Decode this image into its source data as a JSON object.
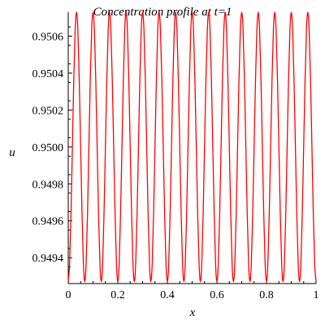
{
  "chart_data": {
    "type": "line",
    "title": "Concentration profile at t=1",
    "xlabel": "x",
    "ylabel": "u",
    "xlim": [
      0,
      1
    ],
    "ylim": [
      0.94926,
      0.95073
    ],
    "x_ticks": [
      "0",
      "0.2",
      "0.4",
      "0.6",
      "0.8",
      "1"
    ],
    "x_tick_values": [
      0,
      0.2,
      0.4,
      0.6,
      0.8,
      1
    ],
    "y_ticks": [
      "0.9494",
      "0.9496",
      "0.9498",
      "0.9500",
      "0.9502",
      "0.9504",
      "0.9506"
    ],
    "y_tick_values": [
      0.9494,
      0.9496,
      0.9498,
      0.95,
      0.9502,
      0.9504,
      0.9506
    ],
    "grid": false,
    "series": [
      {
        "color": "#ff0000",
        "x": [
          0,
          0.0056,
          0.0111,
          0.0167,
          0.0222,
          0.0278,
          0.0333,
          0.0389,
          0.0444,
          0.05,
          0.0556,
          0.0611,
          0.0667,
          0.0722,
          0.0778,
          0.0833,
          0.0889,
          0.0944,
          0.1,
          0.1056,
          0.1111,
          0.1167,
          0.1222,
          0.1278,
          0.1333,
          0.1389,
          0.1444,
          0.15,
          0.1556,
          0.1611,
          0.1667,
          0.1722,
          0.1778,
          0.1833,
          0.1889,
          0.1944,
          0.2,
          0.2056,
          0.2111,
          0.2167,
          0.2222,
          0.2278,
          0.2333,
          0.2389,
          0.2444,
          0.25,
          0.2556,
          0.2611,
          0.2667,
          0.2722,
          0.2778,
          0.2833,
          0.2889,
          0.2944,
          0.3,
          0.3056,
          0.3111,
          0.3167,
          0.3222,
          0.3278,
          0.3333,
          0.3389,
          0.3444,
          0.35,
          0.3556,
          0.3611,
          0.3667,
          0.3722,
          0.3778,
          0.3833,
          0.3889,
          0.3944,
          0.4,
          0.4056,
          0.4111,
          0.4167,
          0.4222,
          0.4278,
          0.4333,
          0.4389,
          0.4444,
          0.45,
          0.4556,
          0.4611,
          0.4667,
          0.4722,
          0.4778,
          0.4833,
          0.4889,
          0.4944,
          0.5,
          0.5056,
          0.5111,
          0.5167,
          0.5222,
          0.5278,
          0.5333,
          0.5389,
          0.5444,
          0.55,
          0.5556,
          0.5611,
          0.5667,
          0.5722,
          0.5778,
          0.5833,
          0.5889,
          0.5944,
          0.6,
          0.6056,
          0.6111,
          0.6167,
          0.6222,
          0.6278,
          0.6333,
          0.6389,
          0.6444,
          0.65,
          0.6556,
          0.6611,
          0.6667,
          0.6722,
          0.6778,
          0.6833,
          0.6889,
          0.6944,
          0.7,
          0.7056,
          0.7111,
          0.7167,
          0.7222,
          0.7278,
          0.7333,
          0.7389,
          0.7444,
          0.75,
          0.7556,
          0.7611,
          0.7667,
          0.7722,
          0.7778,
          0.7833,
          0.7889,
          0.7944,
          0.8,
          0.8056,
          0.8111,
          0.8167,
          0.8222,
          0.8278,
          0.8333,
          0.8389,
          0.8444,
          0.85,
          0.8556,
          0.8611,
          0.8667,
          0.8722,
          0.8778,
          0.8833,
          0.8889,
          0.8944,
          0.9,
          0.9056,
          0.9111,
          0.9167,
          0.9222,
          0.9278,
          0.9333,
          0.9389,
          0.9444,
          0.95,
          0.9556,
          0.9611,
          0.9667,
          0.9722,
          0.9778,
          0.9833,
          0.9889,
          0.9944,
          1
        ],
        "y": [
          0.94927,
          0.94937,
          0.94964,
          0.95,
          0.95036,
          0.95063,
          0.95073,
          0.95063,
          0.95036,
          0.95,
          0.94964,
          0.94937,
          0.94927,
          0.94937,
          0.94964,
          0.95,
          0.95036,
          0.95063,
          0.95073,
          0.95063,
          0.95036,
          0.95,
          0.94964,
          0.94937,
          0.94927,
          0.94937,
          0.94964,
          0.95,
          0.95036,
          0.95063,
          0.95073,
          0.95063,
          0.95036,
          0.95,
          0.94964,
          0.94937,
          0.94927,
          0.94937,
          0.94964,
          0.95,
          0.95036,
          0.95063,
          0.95073,
          0.95063,
          0.95036,
          0.95,
          0.94964,
          0.94937,
          0.94927,
          0.94937,
          0.94964,
          0.95,
          0.95036,
          0.95063,
          0.95073,
          0.95063,
          0.95036,
          0.95,
          0.94964,
          0.94937,
          0.94927,
          0.94937,
          0.94964,
          0.95,
          0.95036,
          0.95063,
          0.95073,
          0.95063,
          0.95036,
          0.95,
          0.94964,
          0.94937,
          0.94927,
          0.94937,
          0.94964,
          0.95,
          0.95036,
          0.95063,
          0.95073,
          0.95063,
          0.95036,
          0.95,
          0.94964,
          0.94937,
          0.94927,
          0.94937,
          0.94964,
          0.95,
          0.95036,
          0.95063,
          0.95073,
          0.95063,
          0.95036,
          0.95,
          0.94964,
          0.94937,
          0.94927,
          0.94937,
          0.94964,
          0.95,
          0.95036,
          0.95063,
          0.95073,
          0.95063,
          0.95036,
          0.95,
          0.94964,
          0.94937,
          0.94927,
          0.94937,
          0.94964,
          0.95,
          0.95036,
          0.95063,
          0.95073,
          0.95063,
          0.95036,
          0.95,
          0.94964,
          0.94937,
          0.94927,
          0.94937,
          0.94964,
          0.95,
          0.95036,
          0.95063,
          0.95073,
          0.95063,
          0.95036,
          0.95,
          0.94964,
          0.94937,
          0.94927,
          0.94937,
          0.94964,
          0.95,
          0.95036,
          0.95063,
          0.95073,
          0.95063,
          0.95036,
          0.95,
          0.94964,
          0.94937,
          0.94927,
          0.94937,
          0.94964,
          0.95,
          0.95036,
          0.95063,
          0.95073,
          0.95063,
          0.95036,
          0.95,
          0.94964,
          0.94937,
          0.94927,
          0.94937,
          0.94964,
          0.95,
          0.95036,
          0.95063,
          0.95073,
          0.95063,
          0.95036,
          0.95,
          0.94964,
          0.94937,
          0.94927,
          0.94937,
          0.94964,
          0.95,
          0.95036,
          0.95063,
          0.95073,
          0.95063,
          0.95036,
          0.95,
          0.94964,
          0.94937,
          0.94927
        ]
      }
    ],
    "colors": {
      "line": "#ff0000",
      "axis": "#000000",
      "background": "#ffffff"
    }
  }
}
